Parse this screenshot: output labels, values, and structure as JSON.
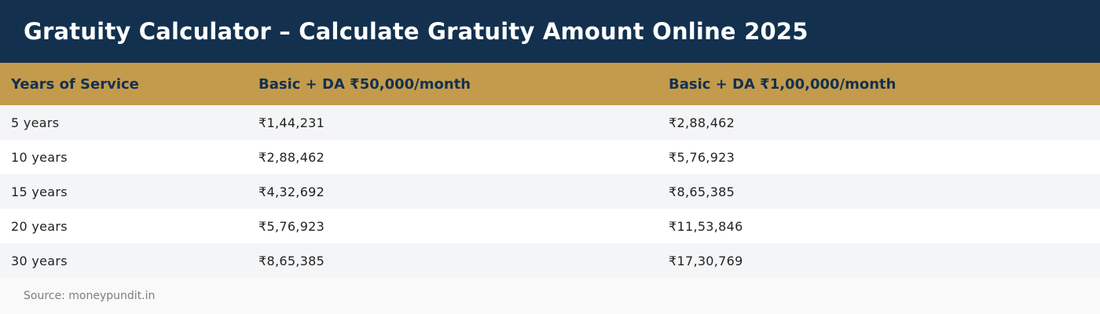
{
  "page": {
    "title": "Gratuity Calculator – Calculate Gratuity Amount Online 2025",
    "source": "Source: moneypundit.in"
  },
  "table": {
    "headers": [
      "Years of Service",
      "Basic + DA ₹50,000/month",
      "Basic + DA ₹1,00,000/month"
    ],
    "rows": [
      [
        "5 years",
        "₹1,44,231",
        "₹2,88,462"
      ],
      [
        "10 years",
        "₹2,88,462",
        "₹5,76,923"
      ],
      [
        "15 years",
        "₹4,32,692",
        "₹8,65,385"
      ],
      [
        "20 years",
        "₹5,76,923",
        "₹11,53,846"
      ],
      [
        "30 years",
        "₹8,65,385",
        "₹17,30,769"
      ]
    ]
  },
  "colors": {
    "header_bg": "#13314f",
    "table_header_bg": "#c49b4c",
    "row_alt_bg": "#f4f5f7"
  }
}
